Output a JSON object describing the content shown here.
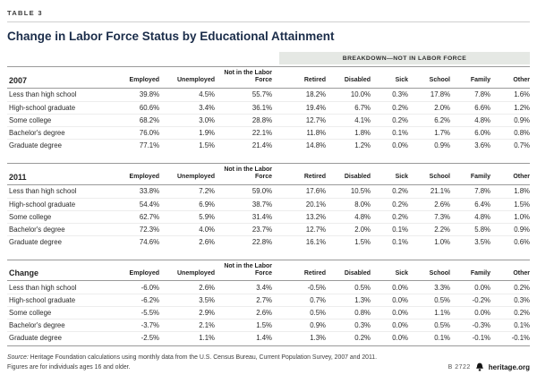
{
  "header": {
    "table_label": "TABLE 3",
    "title": "Change in Labor Force Status by Educational Attainment",
    "breakdown_label": "BREAKDOWN—NOT IN LABOR FORCE"
  },
  "columns": [
    "Employed",
    "Unemployed",
    "Not in the Labor Force",
    "Retired",
    "Disabled",
    "Sick",
    "School",
    "Family",
    "Other"
  ],
  "sections": [
    {
      "label": "2007",
      "rows": [
        {
          "label": "Less than high school",
          "values": [
            "39.8%",
            "4.5%",
            "55.7%",
            "18.2%",
            "10.0%",
            "0.3%",
            "17.8%",
            "7.8%",
            "1.6%"
          ]
        },
        {
          "label": "High-school graduate",
          "values": [
            "60.6%",
            "3.4%",
            "36.1%",
            "19.4%",
            "6.7%",
            "0.2%",
            "2.0%",
            "6.6%",
            "1.2%"
          ]
        },
        {
          "label": "Some college",
          "values": [
            "68.2%",
            "3.0%",
            "28.8%",
            "12.7%",
            "4.1%",
            "0.2%",
            "6.2%",
            "4.8%",
            "0.9%"
          ]
        },
        {
          "label": "Bachelor's degree",
          "values": [
            "76.0%",
            "1.9%",
            "22.1%",
            "11.8%",
            "1.8%",
            "0.1%",
            "1.7%",
            "6.0%",
            "0.8%"
          ]
        },
        {
          "label": "Graduate degree",
          "values": [
            "77.1%",
            "1.5%",
            "21.4%",
            "14.8%",
            "1.2%",
            "0.0%",
            "0.9%",
            "3.6%",
            "0.7%"
          ]
        }
      ]
    },
    {
      "label": "2011",
      "rows": [
        {
          "label": "Less than high school",
          "values": [
            "33.8%",
            "7.2%",
            "59.0%",
            "17.6%",
            "10.5%",
            "0.2%",
            "21.1%",
            "7.8%",
            "1.8%"
          ]
        },
        {
          "label": "High-school graduate",
          "values": [
            "54.4%",
            "6.9%",
            "38.7%",
            "20.1%",
            "8.0%",
            "0.2%",
            "2.6%",
            "6.4%",
            "1.5%"
          ]
        },
        {
          "label": "Some college",
          "values": [
            "62.7%",
            "5.9%",
            "31.4%",
            "13.2%",
            "4.8%",
            "0.2%",
            "7.3%",
            "4.8%",
            "1.0%"
          ]
        },
        {
          "label": "Bachelor's degree",
          "values": [
            "72.3%",
            "4.0%",
            "23.7%",
            "12.7%",
            "2.0%",
            "0.1%",
            "2.2%",
            "5.8%",
            "0.9%"
          ]
        },
        {
          "label": "Graduate degree",
          "values": [
            "74.6%",
            "2.6%",
            "22.8%",
            "16.1%",
            "1.5%",
            "0.1%",
            "1.0%",
            "3.5%",
            "0.6%"
          ]
        }
      ]
    },
    {
      "label": "Change",
      "rows": [
        {
          "label": "Less than high school",
          "values": [
            "-6.0%",
            "2.6%",
            "3.4%",
            "-0.5%",
            "0.5%",
            "0.0%",
            "3.3%",
            "0.0%",
            "0.2%"
          ]
        },
        {
          "label": "High-school graduate",
          "values": [
            "-6.2%",
            "3.5%",
            "2.7%",
            "0.7%",
            "1.3%",
            "0.0%",
            "0.5%",
            "-0.2%",
            "0.3%"
          ]
        },
        {
          "label": "Some college",
          "values": [
            "-5.5%",
            "2.9%",
            "2.6%",
            "0.5%",
            "0.8%",
            "0.0%",
            "1.1%",
            "0.0%",
            "0.2%"
          ]
        },
        {
          "label": "Bachelor's degree",
          "values": [
            "-3.7%",
            "2.1%",
            "1.5%",
            "0.9%",
            "0.3%",
            "0.0%",
            "0.5%",
            "-0.3%",
            "0.1%"
          ]
        },
        {
          "label": "Graduate degree",
          "values": [
            "-2.5%",
            "1.1%",
            "1.4%",
            "1.3%",
            "0.2%",
            "0.0%",
            "0.1%",
            "-0.1%",
            "-0.1%"
          ]
        }
      ]
    }
  ],
  "footer": {
    "source_label": "Source:",
    "source_text": "Heritage Foundation calculations using monthly data from the U.S. Census Bureau, Current Population Survey, 2007 and 2011.",
    "note": "Figures are for individuals ages 16 and older.",
    "doc_number": "B 2722",
    "site": "heritage.org"
  },
  "colors": {
    "breakdown_bar_bg": "#e5e8e4",
    "title_text": "#1b2d4a",
    "rule": "#9a9a9a"
  }
}
